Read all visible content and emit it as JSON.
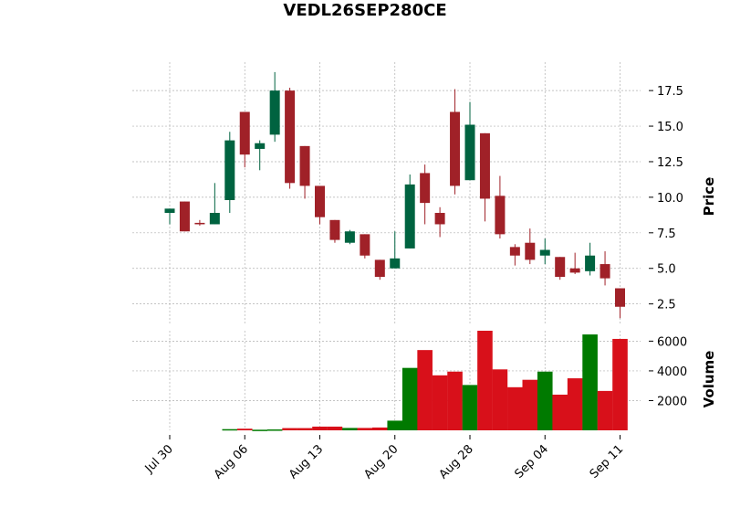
{
  "chart_data": {
    "type": "candlestick",
    "title": "VEDL26SEP280CE",
    "price_axis": {
      "label": "Price",
      "ticks": [
        2.5,
        5.0,
        7.5,
        10.0,
        12.5,
        15.0,
        17.5
      ],
      "ylim": [
        1.0,
        19.5
      ],
      "side": "right"
    },
    "volume_axis": {
      "label": "Volume",
      "ticks": [
        2000,
        4000,
        6000
      ],
      "ylim": [
        0,
        6700
      ],
      "side": "right"
    },
    "x_ticks": [
      "Jul 30",
      "Aug 06",
      "Aug 13",
      "Aug 20",
      "Aug 28",
      "Sep 04",
      "Sep 11"
    ],
    "x_tick_index": [
      0,
      5,
      10,
      15,
      20,
      25,
      30
    ],
    "grid": true,
    "colors": {
      "up": "#006340",
      "down": "#a02128",
      "up_volume": "#007a00",
      "down_volume": "#d8101a",
      "grid": "#b0b0b0"
    },
    "candles": [
      {
        "i": 0,
        "open": 8.9,
        "high": 9.2,
        "low": 8.1,
        "close": 9.2
      },
      {
        "i": 1,
        "open": 9.7,
        "high": 9.7,
        "low": 7.6,
        "close": 7.6
      },
      {
        "i": 2,
        "open": 8.2,
        "high": 8.4,
        "low": 8.0,
        "close": 8.1
      },
      {
        "i": 3,
        "open": 8.1,
        "high": 11.0,
        "low": 8.1,
        "close": 8.9
      },
      {
        "i": 4,
        "open": 9.8,
        "high": 14.6,
        "low": 8.9,
        "close": 14.0
      },
      {
        "i": 5,
        "open": 16.0,
        "high": 16.0,
        "low": 12.1,
        "close": 13.0
      },
      {
        "i": 6,
        "open": 13.4,
        "high": 14.0,
        "low": 11.9,
        "close": 13.8
      },
      {
        "i": 7,
        "open": 14.4,
        "high": 18.8,
        "low": 13.9,
        "close": 17.5
      },
      {
        "i": 8,
        "open": 17.5,
        "high": 17.7,
        "low": 10.6,
        "close": 11.0
      },
      {
        "i": 9,
        "open": 13.6,
        "high": 13.6,
        "low": 9.9,
        "close": 10.8
      },
      {
        "i": 10,
        "open": 10.8,
        "high": 10.8,
        "low": 8.1,
        "close": 8.6
      },
      {
        "i": 11,
        "open": 8.4,
        "high": 8.4,
        "low": 6.8,
        "close": 7.0
      },
      {
        "i": 12,
        "open": 6.8,
        "high": 7.7,
        "low": 6.7,
        "close": 7.6
      },
      {
        "i": 13,
        "open": 7.4,
        "high": 7.4,
        "low": 5.7,
        "close": 5.9
      },
      {
        "i": 14,
        "open": 5.6,
        "high": 5.6,
        "low": 4.2,
        "close": 4.4
      },
      {
        "i": 15,
        "open": 5.0,
        "high": 7.6,
        "low": 5.0,
        "close": 5.7
      },
      {
        "i": 16,
        "open": 6.4,
        "high": 11.6,
        "low": 6.4,
        "close": 10.9
      },
      {
        "i": 17,
        "open": 11.7,
        "high": 12.3,
        "low": 8.1,
        "close": 9.6
      },
      {
        "i": 18,
        "open": 8.9,
        "high": 9.3,
        "low": 7.2,
        "close": 8.1
      },
      {
        "i": 19,
        "open": 16.0,
        "high": 17.6,
        "low": 10.2,
        "close": 10.8
      },
      {
        "i": 20,
        "open": 11.2,
        "high": 16.7,
        "low": 11.2,
        "close": 15.1
      },
      {
        "i": 21,
        "open": 14.5,
        "high": 14.5,
        "low": 8.3,
        "close": 9.9
      },
      {
        "i": 22,
        "open": 10.1,
        "high": 11.5,
        "low": 7.1,
        "close": 7.4
      },
      {
        "i": 23,
        "open": 6.5,
        "high": 6.7,
        "low": 5.2,
        "close": 5.9
      },
      {
        "i": 24,
        "open": 6.8,
        "high": 7.8,
        "low": 5.3,
        "close": 5.6
      },
      {
        "i": 25,
        "open": 5.9,
        "high": 7.1,
        "low": 5.3,
        "close": 6.3
      },
      {
        "i": 26,
        "open": 5.8,
        "high": 5.8,
        "low": 4.2,
        "close": 4.4
      },
      {
        "i": 27,
        "open": 5.0,
        "high": 6.1,
        "low": 4.6,
        "close": 4.7
      },
      {
        "i": 28,
        "open": 4.8,
        "high": 6.8,
        "low": 4.5,
        "close": 5.9
      },
      {
        "i": 29,
        "open": 5.3,
        "high": 6.2,
        "low": 3.8,
        "close": 4.3
      },
      {
        "i": 30,
        "open": 3.6,
        "high": 3.6,
        "low": 1.5,
        "close": 2.3
      }
    ],
    "volumes": [
      0,
      0,
      0,
      0,
      80,
      110,
      40,
      60,
      150,
      150,
      250,
      250,
      160,
      160,
      190,
      650,
      4200,
      5400,
      3700,
      3950,
      3050,
      6700,
      4100,
      2900,
      3400,
      3950,
      2400,
      3500,
      6450,
      2650,
      6150
    ]
  }
}
